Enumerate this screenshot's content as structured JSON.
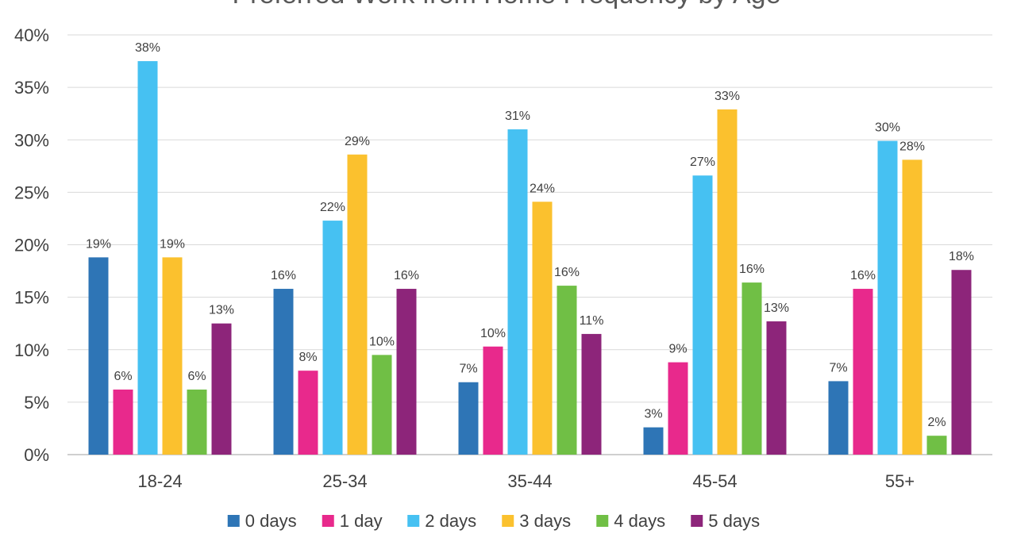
{
  "chart_data": {
    "type": "bar",
    "title": "Preferred Work from Home Frequency by Age",
    "xlabel": "",
    "ylabel": "",
    "ylim": [
      0,
      40
    ],
    "y_tick_values": [
      0,
      5,
      10,
      15,
      20,
      25,
      30,
      35,
      40
    ],
    "y_tick_labels": [
      "0%",
      "5%",
      "10%",
      "15%",
      "20%",
      "25%",
      "30%",
      "35%",
      "40%"
    ],
    "grid": true,
    "legend_position": "bottom",
    "categories": [
      "18-24",
      "25-34",
      "35-44",
      "45-54",
      "55+"
    ],
    "series": [
      {
        "name": "0 days",
        "color": "#2E75B6",
        "values": [
          18.8,
          15.8,
          6.9,
          2.6,
          7.0
        ],
        "labels": [
          "19%",
          "16%",
          "7%",
          "3%",
          "7%"
        ]
      },
      {
        "name": "1 day",
        "color": "#E8298C",
        "values": [
          6.2,
          8.0,
          10.3,
          8.8,
          15.8
        ],
        "labels": [
          "6%",
          "8%",
          "10%",
          "9%",
          "16%"
        ]
      },
      {
        "name": "2 days",
        "color": "#46C1F2",
        "values": [
          37.5,
          22.3,
          31.0,
          26.6,
          29.9
        ],
        "labels": [
          "38%",
          "22%",
          "31%",
          "27%",
          "30%"
        ]
      },
      {
        "name": "3 days",
        "color": "#FBC12E",
        "values": [
          18.8,
          28.6,
          24.1,
          32.9,
          28.1
        ],
        "labels": [
          "19%",
          "29%",
          "24%",
          "33%",
          "28%"
        ]
      },
      {
        "name": "4 days",
        "color": "#70BF45",
        "values": [
          6.2,
          9.5,
          16.1,
          16.4,
          1.8
        ],
        "labels": [
          "6%",
          "10%",
          "16%",
          "16%",
          "2%"
        ]
      },
      {
        "name": "5 days",
        "color": "#8D257A",
        "values": [
          12.5,
          15.8,
          11.5,
          12.7,
          17.6
        ],
        "labels": [
          "13%",
          "16%",
          "11%",
          "13%",
          "18%"
        ]
      }
    ]
  }
}
